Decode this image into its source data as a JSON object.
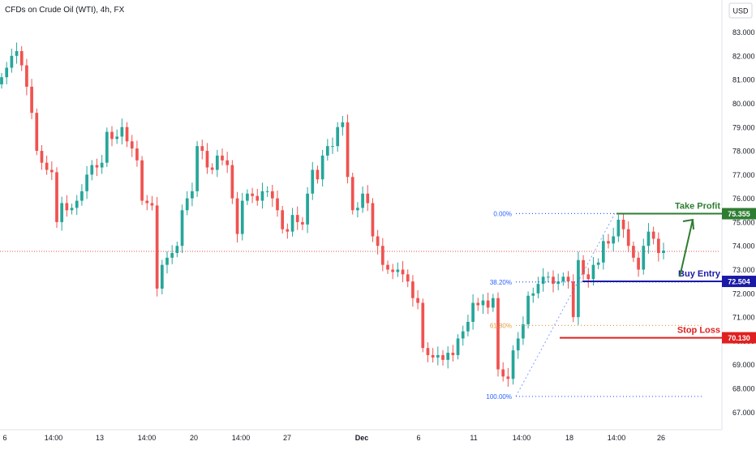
{
  "header": {
    "symbol_title": "CFDs on Crude Oil (WTI), 4h, FX"
  },
  "currency_button": {
    "label": "USD"
  },
  "colors": {
    "bull": "#26a69a",
    "bear": "#ef5350",
    "take_profit": "#2e7d32",
    "buy_entry": "#1a1aa6",
    "stop_loss": "#e02020",
    "fib_line": "#2962ff",
    "fib_618": "#e0a040",
    "current_price_line": "#e05050",
    "arrow": "#2e7d32",
    "axis_text": "#131722"
  },
  "chart_data": {
    "type": "candlestick",
    "title": "CFDs on Crude Oil (WTI), 4h, FX",
    "ylim": [
      66.6,
      83.6
    ],
    "y_ticks": [
      67,
      68,
      69,
      70,
      71,
      72,
      73,
      74,
      75,
      76,
      77,
      78,
      79,
      80,
      81,
      82,
      83
    ],
    "y_tick_labels": [
      "67.000",
      "68.000",
      "69.000",
      "70.000",
      "71.000",
      "72.000",
      "73.000",
      "74.000",
      "75.000",
      "76.000",
      "77.000",
      "78.000",
      "79.000",
      "80.000",
      "81.000",
      "82.000",
      "83.000"
    ],
    "x_tick_labels": [
      "6",
      "14:00",
      "13",
      "14:00",
      "20",
      "14:00",
      "27",
      "Dec",
      "6",
      "11",
      "14:00",
      "18",
      "14:00",
      "26"
    ],
    "price_levels": [
      {
        "label": "Take Profit",
        "value": 75.355,
        "value_label": "75.355",
        "color_key": "take_profit"
      },
      {
        "label": "Buy Entry",
        "value": 72.504,
        "value_label": "72.504",
        "color_key": "buy_entry"
      },
      {
        "label": "Stop Loss",
        "value": 70.13,
        "value_label": "70.130",
        "color_key": "stop_loss"
      }
    ],
    "fibonacci": [
      {
        "label": "0.00%",
        "value": 75.36
      },
      {
        "label": "38.20%",
        "value": 72.48
      },
      {
        "label": "61.80%",
        "value": 70.65
      },
      {
        "label": "100.00%",
        "value": 67.66
      }
    ],
    "current_price": 73.62,
    "close_values": [
      81.1,
      81.5,
      82.0,
      82.2,
      81.6,
      80.7,
      79.6,
      78.0,
      77.5,
      77.2,
      77.1,
      75.0,
      75.8,
      75.5,
      75.6,
      75.9,
      76.3,
      77.0,
      77.4,
      77.3,
      77.5,
      78.8,
      78.5,
      78.6,
      79.0,
      78.4,
      78.1,
      77.6,
      75.9,
      75.8,
      75.7,
      72.2,
      73.2,
      73.5,
      73.7,
      74.0,
      75.5,
      76.0,
      76.3,
      78.2,
      78.0,
      77.3,
      77.2,
      77.8,
      77.6,
      77.4,
      76.0,
      74.5,
      75.9,
      76.2,
      76.1,
      75.9,
      76.3,
      76.3,
      76.0,
      75.5,
      74.7,
      74.6,
      75.3,
      75.0,
      74.9,
      76.2,
      77.2,
      76.8,
      77.8,
      78.2,
      78.2,
      79.0,
      79.2,
      76.9,
      75.5,
      75.6,
      76.2,
      75.8,
      74.4,
      74.0,
      73.2,
      73.0,
      72.9,
      73.0,
      72.8,
      72.5,
      71.8,
      71.6,
      69.7,
      69.4,
      69.3,
      69.4,
      69.2,
      69.5,
      69.4,
      70.1,
      70.4,
      70.8,
      71.6,
      71.5,
      71.7,
      71.4,
      71.8,
      68.8,
      68.5,
      68.4,
      69.6,
      70.1,
      70.7,
      71.9,
      72.0,
      72.4,
      72.7,
      72.7,
      72.4,
      72.5,
      72.7,
      72.5,
      71.0,
      73.4,
      72.8,
      72.6,
      73.2,
      73.3,
      74.2,
      74.1,
      74.4,
      75.1,
      74.7,
      74.0,
      73.5,
      73.0,
      74.0,
      74.6,
      74.3,
      73.7,
      73.8
    ],
    "arrow": {
      "from": {
        "x_index": 129,
        "y": 72.7
      },
      "to": {
        "x_index": 135,
        "y": 75.1
      }
    }
  }
}
